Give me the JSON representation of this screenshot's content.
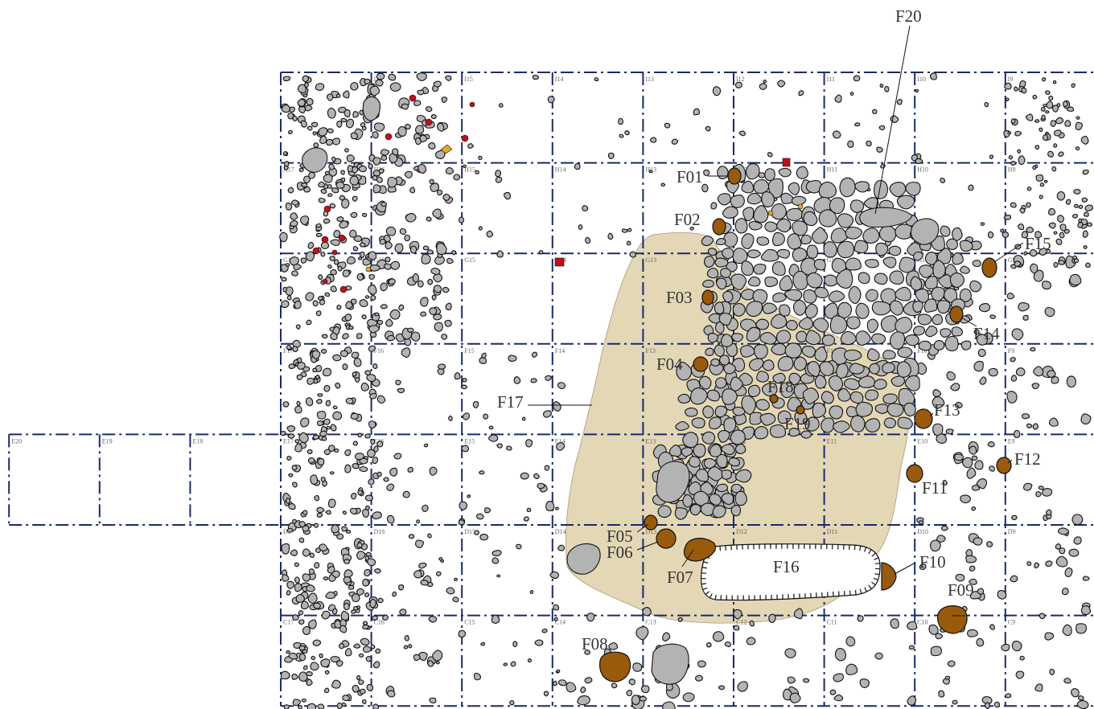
{
  "colors": {
    "background": "#ffffff",
    "grid": "#1a2a6c",
    "stone": "#b3b3b3",
    "stone_outline": "#111111",
    "feature_fill": "#9a5a0c",
    "sand_area": "#e3d7b5",
    "red_find": "#c0101a",
    "yellow_find": "#e6a824",
    "label_text": "#333333"
  },
  "grid": {
    "columns": [
      "17",
      "16",
      "15",
      "14",
      "13",
      "12",
      "11",
      "10",
      "9"
    ],
    "rows": [
      "I",
      "H",
      "G",
      "F",
      "E",
      "D",
      "C"
    ],
    "extension_cells": [
      "E20",
      "E19",
      "E18"
    ]
  },
  "features": {
    "F01": "F01",
    "F02": "F02",
    "F03": "F03",
    "F04": "F04",
    "F05": "F05",
    "F06": "F06",
    "F07": "F07",
    "F08": "F08",
    "F09": "F09",
    "F10": "F10",
    "F11": "F11",
    "F12": "F12",
    "F13": "F13",
    "F14": "F14",
    "F15": "F15",
    "F16": "F16",
    "F17": "F17",
    "F18": "F18",
    "F19": "F19",
    "F20": "F20"
  }
}
